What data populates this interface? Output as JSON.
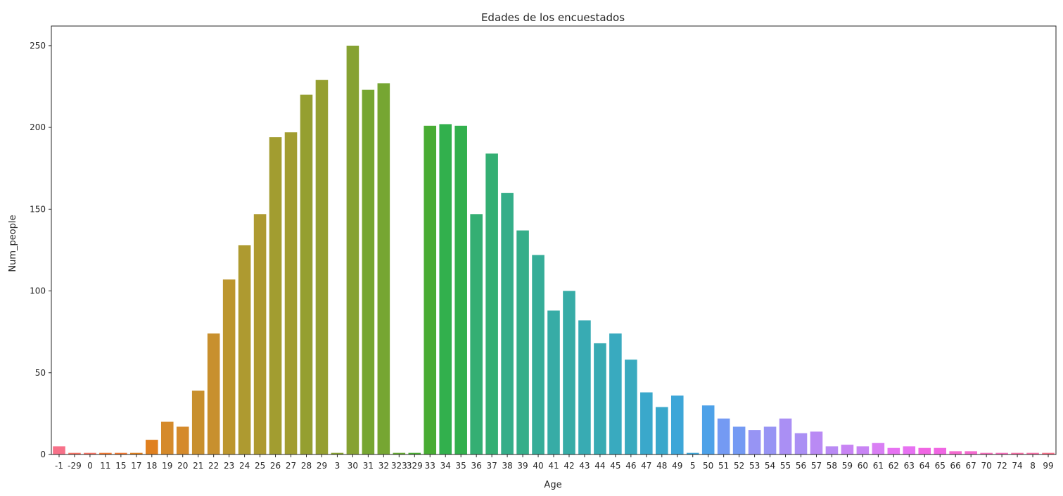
{
  "chart_data": {
    "type": "bar",
    "title": "Edades de los encuestados",
    "xlabel": "Age",
    "ylabel": "Num_people",
    "ylim": [
      0,
      262
    ],
    "yticks": [
      0,
      50,
      100,
      150,
      200,
      250
    ],
    "grid": false,
    "legend": "none",
    "categories": [
      "-1",
      "-29",
      "0",
      "11",
      "15",
      "17",
      "18",
      "19",
      "20",
      "21",
      "22",
      "23",
      "24",
      "25",
      "26",
      "27",
      "28",
      "29",
      "3",
      "30",
      "31",
      "32",
      "323",
      "329",
      "33",
      "34",
      "35",
      "36",
      "37",
      "38",
      "39",
      "40",
      "41",
      "42",
      "43",
      "44",
      "45",
      "46",
      "47",
      "48",
      "49",
      "5",
      "50",
      "51",
      "52",
      "53",
      "54",
      "55",
      "56",
      "57",
      "58",
      "59",
      "60",
      "61",
      "62",
      "63",
      "64",
      "65",
      "66",
      "67",
      "70",
      "72",
      "74",
      "8",
      "99"
    ],
    "values": [
      5,
      1,
      1,
      1,
      1,
      1,
      9,
      20,
      17,
      39,
      74,
      107,
      128,
      147,
      194,
      197,
      220,
      229,
      1,
      250,
      223,
      227,
      1,
      1,
      201,
      202,
      201,
      147,
      184,
      160,
      137,
      122,
      88,
      100,
      82,
      68,
      74,
      58,
      38,
      29,
      36,
      1,
      30,
      22,
      17,
      15,
      17,
      22,
      13,
      14,
      5,
      6,
      5,
      7,
      4,
      5,
      4,
      4,
      2,
      2,
      1,
      1,
      1,
      1,
      1
    ],
    "colors": [
      "#f77189",
      "#f57465",
      "#f37932",
      "#e0801f",
      "#d58a2b",
      "#c8902e",
      "#bc962e",
      "#ae9a30",
      "#a29d30",
      "#959f30",
      "#86a232",
      "#76a632",
      "#65a933",
      "#48ac33",
      "#32b04d",
      "#34af73",
      "#35ae89",
      "#36ad98",
      "#37aca6",
      "#38abb3",
      "#39aabf",
      "#3aa8cb",
      "#3da6d8",
      "#4da1e8",
      "#749af3",
      "#9794f4",
      "#aa8ff4",
      "#b98af4",
      "#c884f4",
      "#d97ff4",
      "#e772f2",
      "#f066e3",
      "#f56bd0",
      "#f56fbc",
      "#f570a6",
      "#f77189"
    ]
  }
}
